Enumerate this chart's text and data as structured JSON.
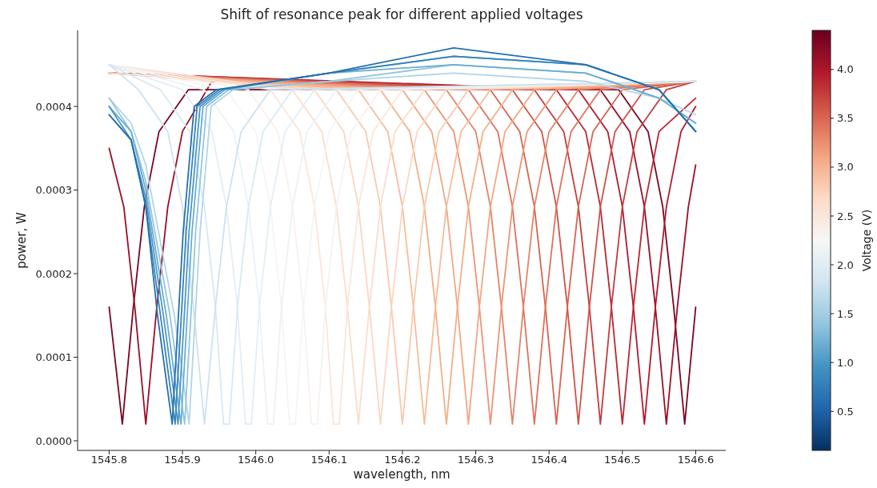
{
  "chart_data": {
    "type": "line",
    "title": "Shift of resonance peak for different applied voltages",
    "xlabel": "wavelength, nm",
    "ylabel": "power, W",
    "clabel": "Voltage (V)",
    "xlim": [
      1545.757,
      1546.641
    ],
    "ylim": [
      -1.15e-05,
      0.000491
    ],
    "xticks": [
      1545.8,
      1545.9,
      {
        "value": 1546,
        "label": "1546.0"
      },
      1546.1,
      1546.2,
      1546.3,
      1546.4,
      1546.5,
      1546.6
    ],
    "yticks": [
      {
        "value": 0,
        "label": "0.0000"
      },
      {
        "value": 0.0001,
        "label": "0.0001"
      },
      {
        "value": 0.0002,
        "label": "0.0002"
      },
      {
        "value": 0.0003,
        "label": "0.0003"
      },
      {
        "value": 0.0004,
        "label": "0.0004"
      }
    ],
    "clim": [
      0.1,
      4.4
    ],
    "cticks": [
      0.5,
      {
        "value": 1,
        "label": "1.0"
      },
      1.5,
      {
        "value": 2,
        "label": "2.0"
      },
      2.5,
      {
        "value": 3,
        "label": "3.0"
      },
      3.5,
      {
        "value": 4,
        "label": "4.0"
      }
    ],
    "grid": false,
    "marker": "none",
    "line_style": "solid",
    "series": [
      {
        "color": "#7a0522",
        "x": [
          1545.8,
          1545.818,
          1545.833,
          1545.848,
          1545.868,
          1545.908,
          1546.495,
          1546.535,
          1546.555,
          1546.57,
          1546.585,
          1546.6
        ],
        "values": [
          0.00016,
          2e-05,
          0.00016,
          0.00028,
          0.00037,
          0.00042,
          0.00042,
          0.00037,
          0.00028,
          0.00016,
          2e-05,
          0.00016
        ]
      },
      {
        "color": "#9a0f29",
        "x": [
          1545.8,
          1545.82,
          1545.835,
          1545.85,
          1545.865,
          1545.88,
          1545.9,
          1545.94,
          1546.47,
          1546.51,
          1546.53,
          1546.545,
          1546.56,
          1546.575,
          1546.59,
          1546.6
        ],
        "values": [
          0.00035,
          0.00028,
          0.00016,
          2e-05,
          0.00016,
          0.00028,
          0.00037,
          0.00043,
          0.00042,
          0.00037,
          0.00028,
          0.00016,
          2e-05,
          0.00016,
          0.00028,
          0.00033
        ]
      },
      {
        "color": "#b4192d",
        "x": [
          1545.8,
          1546.44,
          1546.48,
          1546.5,
          1546.515,
          1546.53,
          1546.545,
          1546.56,
          1546.58,
          1546.6
        ],
        "values": [
          0.00044,
          0.00042,
          0.00037,
          0.00028,
          0.00016,
          2e-05,
          0.00016,
          0.00028,
          0.00037,
          0.0004
        ]
      },
      {
        "color": "#bb2734",
        "x": [
          1545.8,
          1546.41,
          1546.45,
          1546.47,
          1546.485,
          1546.5,
          1546.515,
          1546.53,
          1546.55,
          1546.6
        ],
        "values": [
          0.00044,
          0.00042,
          0.00037,
          0.00028,
          0.00016,
          2e-05,
          0.00016,
          0.00028,
          0.00037,
          0.00041
        ]
      },
      {
        "color": "#c43c3e",
        "x": [
          1545.8,
          1546.38,
          1546.42,
          1546.44,
          1546.455,
          1546.47,
          1546.485,
          1546.5,
          1546.52,
          1546.56,
          1546.6
        ],
        "values": [
          0.00044,
          0.00042,
          0.00037,
          0.00028,
          0.00016,
          2e-05,
          0.00016,
          0.00028,
          0.00037,
          0.00042,
          0.00043
        ]
      },
      {
        "color": "#cf5249",
        "x": [
          1545.8,
          1546.35,
          1546.39,
          1546.41,
          1546.425,
          1546.44,
          1546.455,
          1546.47,
          1546.49,
          1546.53,
          1546.6
        ],
        "values": [
          0.00044,
          0.00042,
          0.00037,
          0.00028,
          0.00016,
          2e-05,
          0.00016,
          0.00028,
          0.00037,
          0.00042,
          0.00043
        ]
      },
      {
        "color": "#d66551",
        "x": [
          1545.8,
          1546.32,
          1546.36,
          1546.38,
          1546.395,
          1546.41,
          1546.425,
          1546.44,
          1546.46,
          1546.5,
          1546.6
        ],
        "values": [
          0.00044,
          0.00042,
          0.00037,
          0.00028,
          0.00016,
          2e-05,
          0.00016,
          0.00028,
          0.00037,
          0.00042,
          0.00043
        ]
      },
      {
        "color": "#dd735d",
        "x": [
          1545.8,
          1546.29,
          1546.33,
          1546.35,
          1546.365,
          1546.38,
          1546.395,
          1546.41,
          1546.43,
          1546.47,
          1546.6
        ],
        "values": [
          0.00044,
          0.00042,
          0.00037,
          0.00028,
          0.00016,
          2e-05,
          0.00016,
          0.00028,
          0.00037,
          0.00042,
          0.00043
        ]
      },
      {
        "color": "#e48469",
        "x": [
          1545.8,
          1546.26,
          1546.3,
          1546.32,
          1546.335,
          1546.35,
          1546.365,
          1546.38,
          1546.4,
          1546.44,
          1546.6
        ],
        "values": [
          0.00044,
          0.00042,
          0.00037,
          0.00028,
          0.00016,
          2e-05,
          0.00016,
          0.00028,
          0.00037,
          0.00042,
          0.00043
        ]
      },
      {
        "color": "#ec9575",
        "x": [
          1545.8,
          1546.23,
          1546.27,
          1546.29,
          1546.305,
          1546.32,
          1546.335,
          1546.35,
          1546.37,
          1546.41,
          1546.6
        ],
        "values": [
          0.00044,
          0.00042,
          0.00037,
          0.00028,
          0.00016,
          2e-05,
          0.00016,
          0.00028,
          0.00037,
          0.00042,
          0.00043
        ]
      },
      {
        "color": "#f4a683",
        "x": [
          1545.8,
          1546.2,
          1546.24,
          1546.26,
          1546.275,
          1546.29,
          1546.305,
          1546.32,
          1546.34,
          1546.38,
          1546.6
        ],
        "values": [
          0.00044,
          0.00042,
          0.00037,
          0.00028,
          0.00016,
          2e-05,
          0.00016,
          0.00028,
          0.00037,
          0.00042,
          0.00043
        ]
      },
      {
        "color": "#f5ae88",
        "x": [
          1545.8,
          1546.17,
          1546.21,
          1546.23,
          1546.245,
          1546.26,
          1546.275,
          1546.29,
          1546.31,
          1546.35,
          1546.6
        ],
        "values": [
          0.00044,
          0.00042,
          0.00037,
          0.00028,
          0.00016,
          2e-05,
          0.00016,
          0.00028,
          0.00037,
          0.00042,
          0.00043
        ]
      },
      {
        "color": "#f7bc99",
        "x": [
          1545.8,
          1546.14,
          1546.18,
          1546.2,
          1546.215,
          1546.23,
          1546.245,
          1546.26,
          1546.28,
          1546.32,
          1546.6
        ],
        "values": [
          0.00044,
          0.00042,
          0.00037,
          0.00028,
          0.00016,
          2e-05,
          0.00016,
          0.00028,
          0.00037,
          0.00042,
          0.00043
        ]
      },
      {
        "color": "#f9c9ad",
        "x": [
          1545.8,
          1546.11,
          1546.15,
          1546.17,
          1546.185,
          1546.2,
          1546.215,
          1546.23,
          1546.25,
          1546.29,
          1546.6
        ],
        "values": [
          0.00044,
          0.00042,
          0.00037,
          0.00028,
          0.00016,
          2e-05,
          0.00016,
          0.00028,
          0.00037,
          0.00042,
          0.00043
        ]
      },
      {
        "color": "#fcd6c2",
        "x": [
          1545.8,
          1546.08,
          1546.12,
          1546.14,
          1546.155,
          1546.17,
          1546.185,
          1546.2,
          1546.22,
          1546.26,
          1546.6
        ],
        "values": [
          0.00044,
          0.00042,
          0.00037,
          0.00028,
          0.00016,
          2e-05,
          0.00016,
          0.00028,
          0.00037,
          0.00042,
          0.00043
        ]
      },
      {
        "color": "#fcdccb",
        "x": [
          1545.8,
          1546.05,
          1546.09,
          1546.11,
          1546.125,
          1546.14,
          1546.155,
          1546.17,
          1546.19,
          1546.23,
          1546.6
        ],
        "values": [
          0.00045,
          0.00042,
          0.00037,
          0.00028,
          0.00016,
          2e-05,
          0.00016,
          0.00028,
          0.00037,
          0.00042,
          0.00043
        ]
      },
      {
        "color": "#fae6dc",
        "x": [
          1545.8,
          1546.02,
          1546.06,
          1546.08,
          1546.095,
          1546.106,
          1546.114,
          1546.125,
          1546.14,
          1546.16,
          1546.2,
          1546.6
        ],
        "values": [
          0.00045,
          0.00042,
          0.00037,
          0.00028,
          0.00016,
          2e-05,
          2e-05,
          0.00016,
          0.00028,
          0.00037,
          0.00042,
          0.00043
        ]
      },
      {
        "color": "#f8f1ee",
        "x": [
          1545.8,
          1545.99,
          1546.03,
          1546.05,
          1546.065,
          1546.076,
          1546.084,
          1546.095,
          1546.11,
          1546.13,
          1546.17,
          1546.6
        ],
        "values": [
          0.00045,
          0.00042,
          0.00037,
          0.00028,
          0.00016,
          2e-05,
          2e-05,
          0.00016,
          0.00028,
          0.00037,
          0.00042,
          0.00043
        ]
      },
      {
        "color": "#f4f5f6",
        "x": [
          1545.8,
          1545.96,
          1546,
          1546.02,
          1546.035,
          1546.046,
          1546.054,
          1546.065,
          1546.08,
          1546.1,
          1546.14,
          1546.6
        ],
        "values": [
          0.00045,
          0.00042,
          0.00037,
          0.00028,
          0.00016,
          2e-05,
          2e-05,
          0.00016,
          0.00028,
          0.00037,
          0.00042,
          0.00043
        ]
      },
      {
        "color": "#ecf2f5",
        "x": [
          1545.8,
          1545.93,
          1545.97,
          1545.99,
          1546.005,
          1546.016,
          1546.024,
          1546.035,
          1546.05,
          1546.07,
          1546.11,
          1546.6
        ],
        "values": [
          0.00045,
          0.00042,
          0.00037,
          0.00028,
          0.00016,
          2e-05,
          2e-05,
          0.00016,
          0.00028,
          0.00037,
          0.00042,
          0.00043
        ]
      },
      {
        "color": "#e3eef4",
        "x": [
          1545.8,
          1545.9,
          1545.94,
          1545.96,
          1545.975,
          1545.986,
          1545.994,
          1546.005,
          1546.02,
          1546.04,
          1546.08,
          1546.6
        ],
        "values": [
          0.00045,
          0.00042,
          0.00037,
          0.00028,
          0.00016,
          2e-05,
          2e-05,
          0.00016,
          0.00028,
          0.00037,
          0.00042,
          0.00043
        ]
      },
      {
        "color": "#d9e9f2",
        "x": [
          1545.8,
          1545.87,
          1545.91,
          1545.93,
          1545.945,
          1545.956,
          1545.964,
          1545.975,
          1545.99,
          1546.01,
          1546.05,
          1546.6
        ],
        "values": [
          0.00045,
          0.00042,
          0.00037,
          0.00028,
          0.00016,
          2e-05,
          2e-05,
          0.00016,
          0.00028,
          0.00037,
          0.00042,
          0.00043
        ]
      },
      {
        "color": "#cde2ef",
        "x": [
          1545.8,
          1545.84,
          1545.88,
          1545.9,
          1545.915,
          1545.93,
          1545.945,
          1545.96,
          1545.98,
          1546.02,
          1546.6
        ],
        "values": [
          0.00045,
          0.00042,
          0.00037,
          0.00028,
          0.00016,
          2e-05,
          0.00016,
          0.00028,
          0.00037,
          0.00042,
          0.00043
        ]
      },
      {
        "color": "#b2d5e7",
        "x": [
          1545.8,
          1545.83,
          1545.85,
          1545.889,
          1545.909,
          1545.924,
          1545.939,
          1545.969,
          1546.1,
          1546.27,
          1546.45,
          1546.55,
          1546.6
        ],
        "values": [
          0.00041,
          0.00038,
          0.00033,
          0.00015,
          2e-05,
          0.00025,
          0.0004,
          0.00042,
          0.00043,
          0.00044,
          0.00043,
          0.00041,
          0.00039
        ]
      },
      {
        "color": "#93c6de",
        "x": [
          1545.8,
          1545.83,
          1545.85,
          1545.883,
          1545.903,
          1545.918,
          1545.933,
          1545.963,
          1546.1,
          1546.27,
          1546.45,
          1546.55,
          1546.6
        ],
        "values": [
          0.00041,
          0.00037,
          0.00031,
          0.00015,
          2e-05,
          0.00025,
          0.0004,
          0.00042,
          0.00043,
          0.00045,
          0.00044,
          0.00041,
          0.00038
        ]
      },
      {
        "color": "#6badd0",
        "x": [
          1545.8,
          1545.83,
          1545.85,
          1545.878,
          1545.898,
          1545.913,
          1545.928,
          1545.958,
          1546.1,
          1546.27,
          1546.45,
          1546.55,
          1546.6
        ],
        "values": [
          0.0004,
          0.00037,
          0.0003,
          0.00015,
          2e-05,
          0.00025,
          0.0004,
          0.00042,
          0.00044,
          0.00045,
          0.00044,
          0.00041,
          0.00038
        ]
      },
      {
        "color": "#4a97c6",
        "x": [
          1545.8,
          1545.83,
          1545.85,
          1545.874,
          1545.894,
          1545.909,
          1545.924,
          1545.954,
          1546.1,
          1546.27,
          1546.45,
          1546.55,
          1546.6
        ],
        "values": [
          0.0004,
          0.00036,
          0.00029,
          0.00015,
          2e-05,
          0.00025,
          0.0004,
          0.00042,
          0.00044,
          0.00046,
          0.00045,
          0.00042,
          0.00037
        ]
      },
      {
        "color": "#3584bb",
        "x": [
          1545.8,
          1545.83,
          1545.85,
          1545.87,
          1545.89,
          1545.905,
          1545.92,
          1545.95,
          1546.1,
          1546.27,
          1546.45,
          1546.55,
          1546.6
        ],
        "values": [
          0.00039,
          0.00036,
          0.00028,
          0.00015,
          2e-05,
          0.00025,
          0.0004,
          0.00042,
          0.00044,
          0.00046,
          0.00045,
          0.00042,
          0.00037
        ]
      },
      {
        "color": "#2570b0",
        "x": [
          1545.8,
          1545.83,
          1545.85,
          1545.866,
          1545.886,
          1545.901,
          1545.916,
          1545.946,
          1546.1,
          1546.27,
          1546.45,
          1546.55,
          1546.6
        ],
        "values": [
          0.00039,
          0.00036,
          0.00028,
          0.00015,
          2e-05,
          0.00025,
          0.0004,
          0.00042,
          0.00044,
          0.00047,
          0.00045,
          0.00042,
          0.00037
        ]
      }
    ]
  }
}
